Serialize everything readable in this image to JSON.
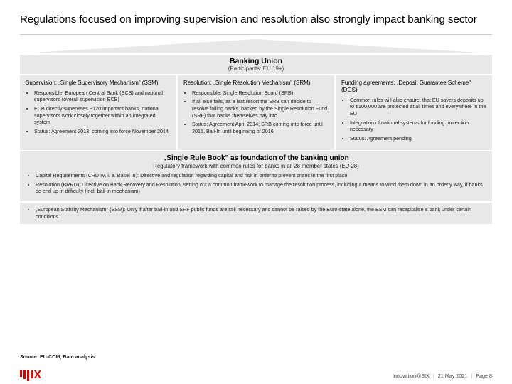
{
  "title": "Regulations focused on improving supervision and resolution also strongly impact banking sector",
  "banner": {
    "title": "Banking Union",
    "subtitle": "(Participants: EU 19+)"
  },
  "pillars": [
    {
      "title": "Supervision: „Single Supervisory Mechanism\" (SSM)",
      "items": [
        "Responsible: European Central Bank (ECB) and national supervisors (overall supervision ECB)",
        "ECB directly supervises ~120 important banks, national supervisors work closely together within an integrated system",
        "Status: Agreement 2013, coming into force November 2014"
      ]
    },
    {
      "title": "Resolution: „Single Resolution Mechanism\" (SRM)",
      "items": [
        "Responsible: Single Resolution Board (SRB)",
        "If all else fails, as a last resort the SRB can decide to resolve failing banks, backed by the Single Resolution Fund (SRF) that banks themselves pay into",
        "Status: Agreement April 2014; SRB coming into force until 2015, Bail-In until beginning of 2016"
      ]
    },
    {
      "title": "Funding agreements: „Deposit Guarantee Scheme\" (DGS)",
      "items": [
        "Common rules will also ensure, that EU savers deposits up to €100,000 are protected at all times and everywhere in the EU",
        "Integration of national systems for funding protection necessary",
        "Status: Agreement pending"
      ]
    }
  ],
  "rulebook": {
    "title": "„Single Rule Book\" as foundation of the banking union",
    "subtitle": "Regulatory framework with common rules for banks in all 28 member states (EU 28)",
    "items": [
      "Capital Requirements (CRD IV, i. e. Basel III): Directive and regulation regarding capital and risk in order to prevent crises in the first place",
      "Resolution (BRRD): Directive on Bank Recovery and Resolution, setting out a common framework to manage the resolution process, including a means to wind them down in an orderly way, if banks do end up in difficulty (incl. bail-in mechanism)"
    ]
  },
  "esm": {
    "items": [
      "„European Stability Mechanism\" (ESM): Only if after bail-in and SRF public funds are still necessary and cannot be raised by the Euro-state alone, the ESM can recapitalise a bank under certain conditions"
    ]
  },
  "source": "Source: EU-COM; Bain analysis",
  "logo": {
    "text": "IX",
    "color": "#d10000"
  },
  "footer": {
    "event": "Innovation@SIX",
    "date": "21 May 2021",
    "page": "Page 8"
  }
}
